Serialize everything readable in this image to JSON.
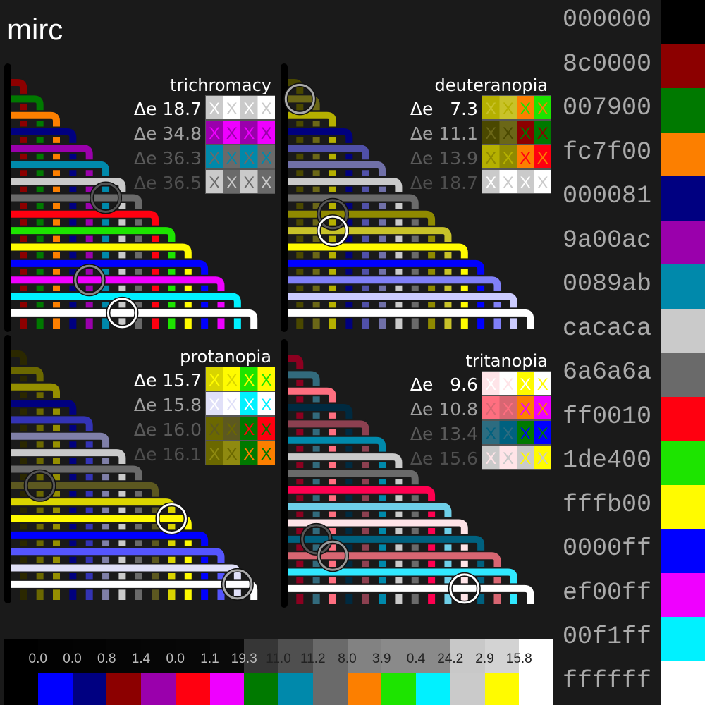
{
  "title": "mirc",
  "palette": [
    "000000",
    "8c0000",
    "007900",
    "fc7f00",
    "000081",
    "9a00ac",
    "0089ab",
    "cacaca",
    "6a6a6a",
    "ff0010",
    "1de400",
    "fffb00",
    "0000ff",
    "ef00ff",
    "00f1ff",
    "ffffff"
  ],
  "panels": [
    {
      "name": "trichromacy",
      "colors": [
        "#000000",
        "#8c0000",
        "#007900",
        "#fc7f00",
        "#000081",
        "#9a00ac",
        "#0089ab",
        "#cacaca",
        "#6a6a6a",
        "#ff0010",
        "#1de400",
        "#fffb00",
        "#0000ff",
        "#ef00ff",
        "#00f1ff",
        "#ffffff"
      ],
      "rows": [
        {
          "label": "Δe 18.7",
          "cells": [
            "#cacaca",
            "#ffffff",
            "#cacaca",
            "#ffffff"
          ]
        },
        {
          "label": "Δe 34.8",
          "cells": [
            "#9a00ac",
            "#ef00ff",
            "#9a00ac",
            "#ef00ff"
          ]
        },
        {
          "label": "Δe 36.3",
          "cells": [
            "#0089ab",
            "#6a6a6a",
            "#0089ab",
            "#6a6a6a"
          ]
        },
        {
          "label": "Δe 36.5",
          "cells": [
            "#cacaca",
            "#6a6a6a",
            "#cacaca",
            "#6a6a6a"
          ]
        }
      ],
      "circles": [
        {
          "v": 6,
          "h": 8,
          "color": "#555555"
        },
        {
          "v": 5,
          "h": 13,
          "color": "#888888"
        },
        {
          "v": 7,
          "h": 15,
          "color": "#ffffff"
        }
      ]
    },
    {
      "name": "deuteranopia",
      "colors": [
        "#000000",
        "#4a4800",
        "#6b6717",
        "#b5b000",
        "#00007f",
        "#5050a8",
        "#7070a8",
        "#cacaca",
        "#6a6a6a",
        "#8f8a00",
        "#c8c229",
        "#fffb00",
        "#0000ff",
        "#8080f8",
        "#ccccff",
        "#ffffff"
      ],
      "rows": [
        {
          "label": "Δe   7.3",
          "cells": [
            "#b5b000",
            "#c8c229",
            "#fc7f00",
            "#1de400"
          ]
        },
        {
          "label": "Δe 11.1",
          "cells": [
            "#4a4800",
            "#6b6717",
            "#8c0000",
            "#007900"
          ]
        },
        {
          "label": "Δe 13.9",
          "cells": [
            "#b5b000",
            "#8f8a00",
            "#fc7f00",
            "#ff0010"
          ]
        },
        {
          "label": "Δe 18.7",
          "cells": [
            "#cacaca",
            "#ffffff",
            "#cacaca",
            "#ffffff"
          ]
        }
      ],
      "circles": [
        {
          "v": 1,
          "h": 2,
          "color": "#aaaaaa"
        },
        {
          "v": 3,
          "h": 9,
          "color": "#555555"
        },
        {
          "v": 3,
          "h": 10,
          "color": "#ffffff"
        }
      ]
    },
    {
      "name": "protanopia",
      "colors": [
        "#000000",
        "#2b2800",
        "#6b6800",
        "#958f00",
        "#00007f",
        "#3333b5",
        "#7f7fa8",
        "#cacaca",
        "#6a6a6a",
        "#5c5820",
        "#dbd500",
        "#fffb00",
        "#0000ff",
        "#5555ff",
        "#e0e0f8",
        "#ffffff"
      ],
      "rows": [
        {
          "label": "Δe 15.7",
          "cells": [
            "#d8d400",
            "#fffb00",
            "#1de400",
            "#fffb00"
          ]
        },
        {
          "label": "Δe 15.8",
          "cells": [
            "#e0e0f8",
            "#ffffff",
            "#00f1ff",
            "#ffffff"
          ]
        },
        {
          "label": "Δe 16.0",
          "cells": [
            "#6b6800",
            "#5c5820",
            "#007900",
            "#ff0010"
          ]
        },
        {
          "label": "Δe 16.1",
          "cells": [
            "#6b6800",
            "#8f8a10",
            "#007900",
            "#fc7f00"
          ]
        }
      ],
      "circles": [
        {
          "v": 2,
          "h": 9,
          "color": "#555555"
        },
        {
          "v": 10,
          "h": 11,
          "color": "#ffffff"
        },
        {
          "v": 14,
          "h": 15,
          "color": "#aaaaaa"
        }
      ]
    },
    {
      "name": "tritanopia",
      "colors": [
        "#000000",
        "#8c0020",
        "#326a7c",
        "#ff6f80",
        "#002a40",
        "#8c4050",
        "#0089ab",
        "#cacaca",
        "#6a6a6a",
        "#ff0050",
        "#6ecfe8",
        "#ffe4e8",
        "#00617f",
        "#d86672",
        "#30e8ff",
        "#ffffff"
      ],
      "rows": [
        {
          "label": "Δe   9.6",
          "cells": [
            "#ffe4e8",
            "#ffffff",
            "#fffb00",
            "#ffffff"
          ]
        },
        {
          "label": "Δe 10.8",
          "cells": [
            "#ff6f80",
            "#d86672",
            "#fc7f00",
            "#ef00ff"
          ]
        },
        {
          "label": "Δe 13.4",
          "cells": [
            "#2d6c80",
            "#00617f",
            "#007900",
            "#0000ff"
          ]
        },
        {
          "label": "Δe 15.6",
          "cells": [
            "#cacaca",
            "#ffe4e8",
            "#cacaca",
            "#fffb00"
          ]
        }
      ],
      "circles": [
        {
          "v": 2,
          "h": 12,
          "color": "#555555"
        },
        {
          "v": 3,
          "h": 13,
          "color": "#999999"
        },
        {
          "v": 11,
          "h": 15,
          "color": "#ffffff"
        }
      ]
    }
  ],
  "bar": {
    "gray": [
      "#000000",
      "#020202",
      "#030303",
      "#050505",
      "#060606",
      "#070707",
      "#0a0a0a",
      "#363636",
      "#4f4f4f",
      "#6a6a6a",
      "#828282",
      "#8a8a8a",
      "#8a8a8a",
      "#c8c8c8",
      "#d3d3d3",
      "#ffffff"
    ],
    "colors": [
      "#000000",
      "#0000ff",
      "#000081",
      "#8c0000",
      "#9a00ac",
      "#ff0010",
      "#ef00ff",
      "#007900",
      "#0089ab",
      "#6a6a6a",
      "#fc7f00",
      "#1de400",
      "#00f1ff",
      "#cacaca",
      "#fffb00",
      "#ffffff"
    ],
    "values": [
      "0.0",
      "0.0",
      "0.8",
      "1.4",
      "0.0",
      "1.1",
      "19.3",
      "11.0",
      "11.2",
      "8.0",
      "3.9",
      "0.4",
      "24.2",
      "2.9",
      "15.8"
    ]
  }
}
